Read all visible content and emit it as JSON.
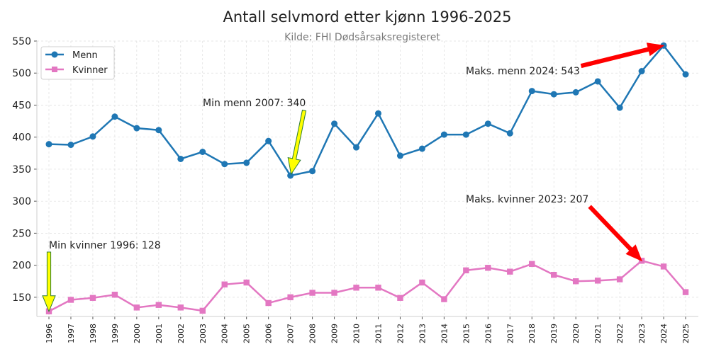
{
  "chart_data": {
    "type": "line",
    "title": "Antall selvmord etter kjønn 1996-2025",
    "subtitle": "Kilde: FHI Dødsårsaksregisteret",
    "xlabel": "",
    "ylabel": "",
    "x": [
      "1996",
      "1997",
      "1998",
      "1999",
      "2000",
      "2001",
      "2002",
      "2003",
      "2004",
      "2005",
      "2006",
      "2007",
      "2008",
      "2009",
      "2010",
      "2011",
      "2012",
      "2013",
      "2014",
      "2015",
      "2016",
      "2017",
      "2018",
      "2019",
      "2020",
      "2021",
      "2022",
      "2023",
      "2024",
      "2025"
    ],
    "yticks": [
      150,
      200,
      250,
      300,
      350,
      400,
      450,
      500,
      550
    ],
    "ylim": [
      120,
      550
    ],
    "grid": true,
    "legend": "top-left",
    "series": [
      {
        "name": "Menn",
        "color": "#1f77b4",
        "marker": "circle",
        "values": [
          389,
          388,
          401,
          432,
          414,
          411,
          366,
          377,
          358,
          360,
          394,
          340,
          347,
          421,
          384,
          437,
          371,
          382,
          404,
          404,
          421,
          406,
          472,
          467,
          470,
          487,
          446,
          503,
          543,
          498
        ]
      },
      {
        "name": "Kvinner",
        "color": "#e377c2",
        "marker": "square",
        "values": [
          128,
          146,
          149,
          154,
          134,
          138,
          134,
          129,
          170,
          173,
          141,
          150,
          157,
          157,
          165,
          165,
          149,
          173,
          147,
          192,
          196,
          190,
          202,
          185,
          175,
          176,
          178,
          207,
          198,
          158
        ]
      }
    ],
    "annotations": [
      {
        "text": "Maks. menn 2024: 543",
        "x": "2024",
        "y": 543,
        "arrow_color": "#ff0000",
        "style": "red-arrow"
      },
      {
        "text": "Min menn 2007: 340",
        "x": "2007",
        "y": 340,
        "arrow_color": "#ffff00",
        "style": "yellow-arrow"
      },
      {
        "text": "Maks. kvinner 2023: 207",
        "x": "2023",
        "y": 207,
        "arrow_color": "#ff0000",
        "style": "red-arrow"
      },
      {
        "text": "Min kvinner 1996: 128",
        "x": "1996",
        "y": 128,
        "arrow_color": "#ffff00",
        "style": "yellow-arrow"
      }
    ]
  }
}
